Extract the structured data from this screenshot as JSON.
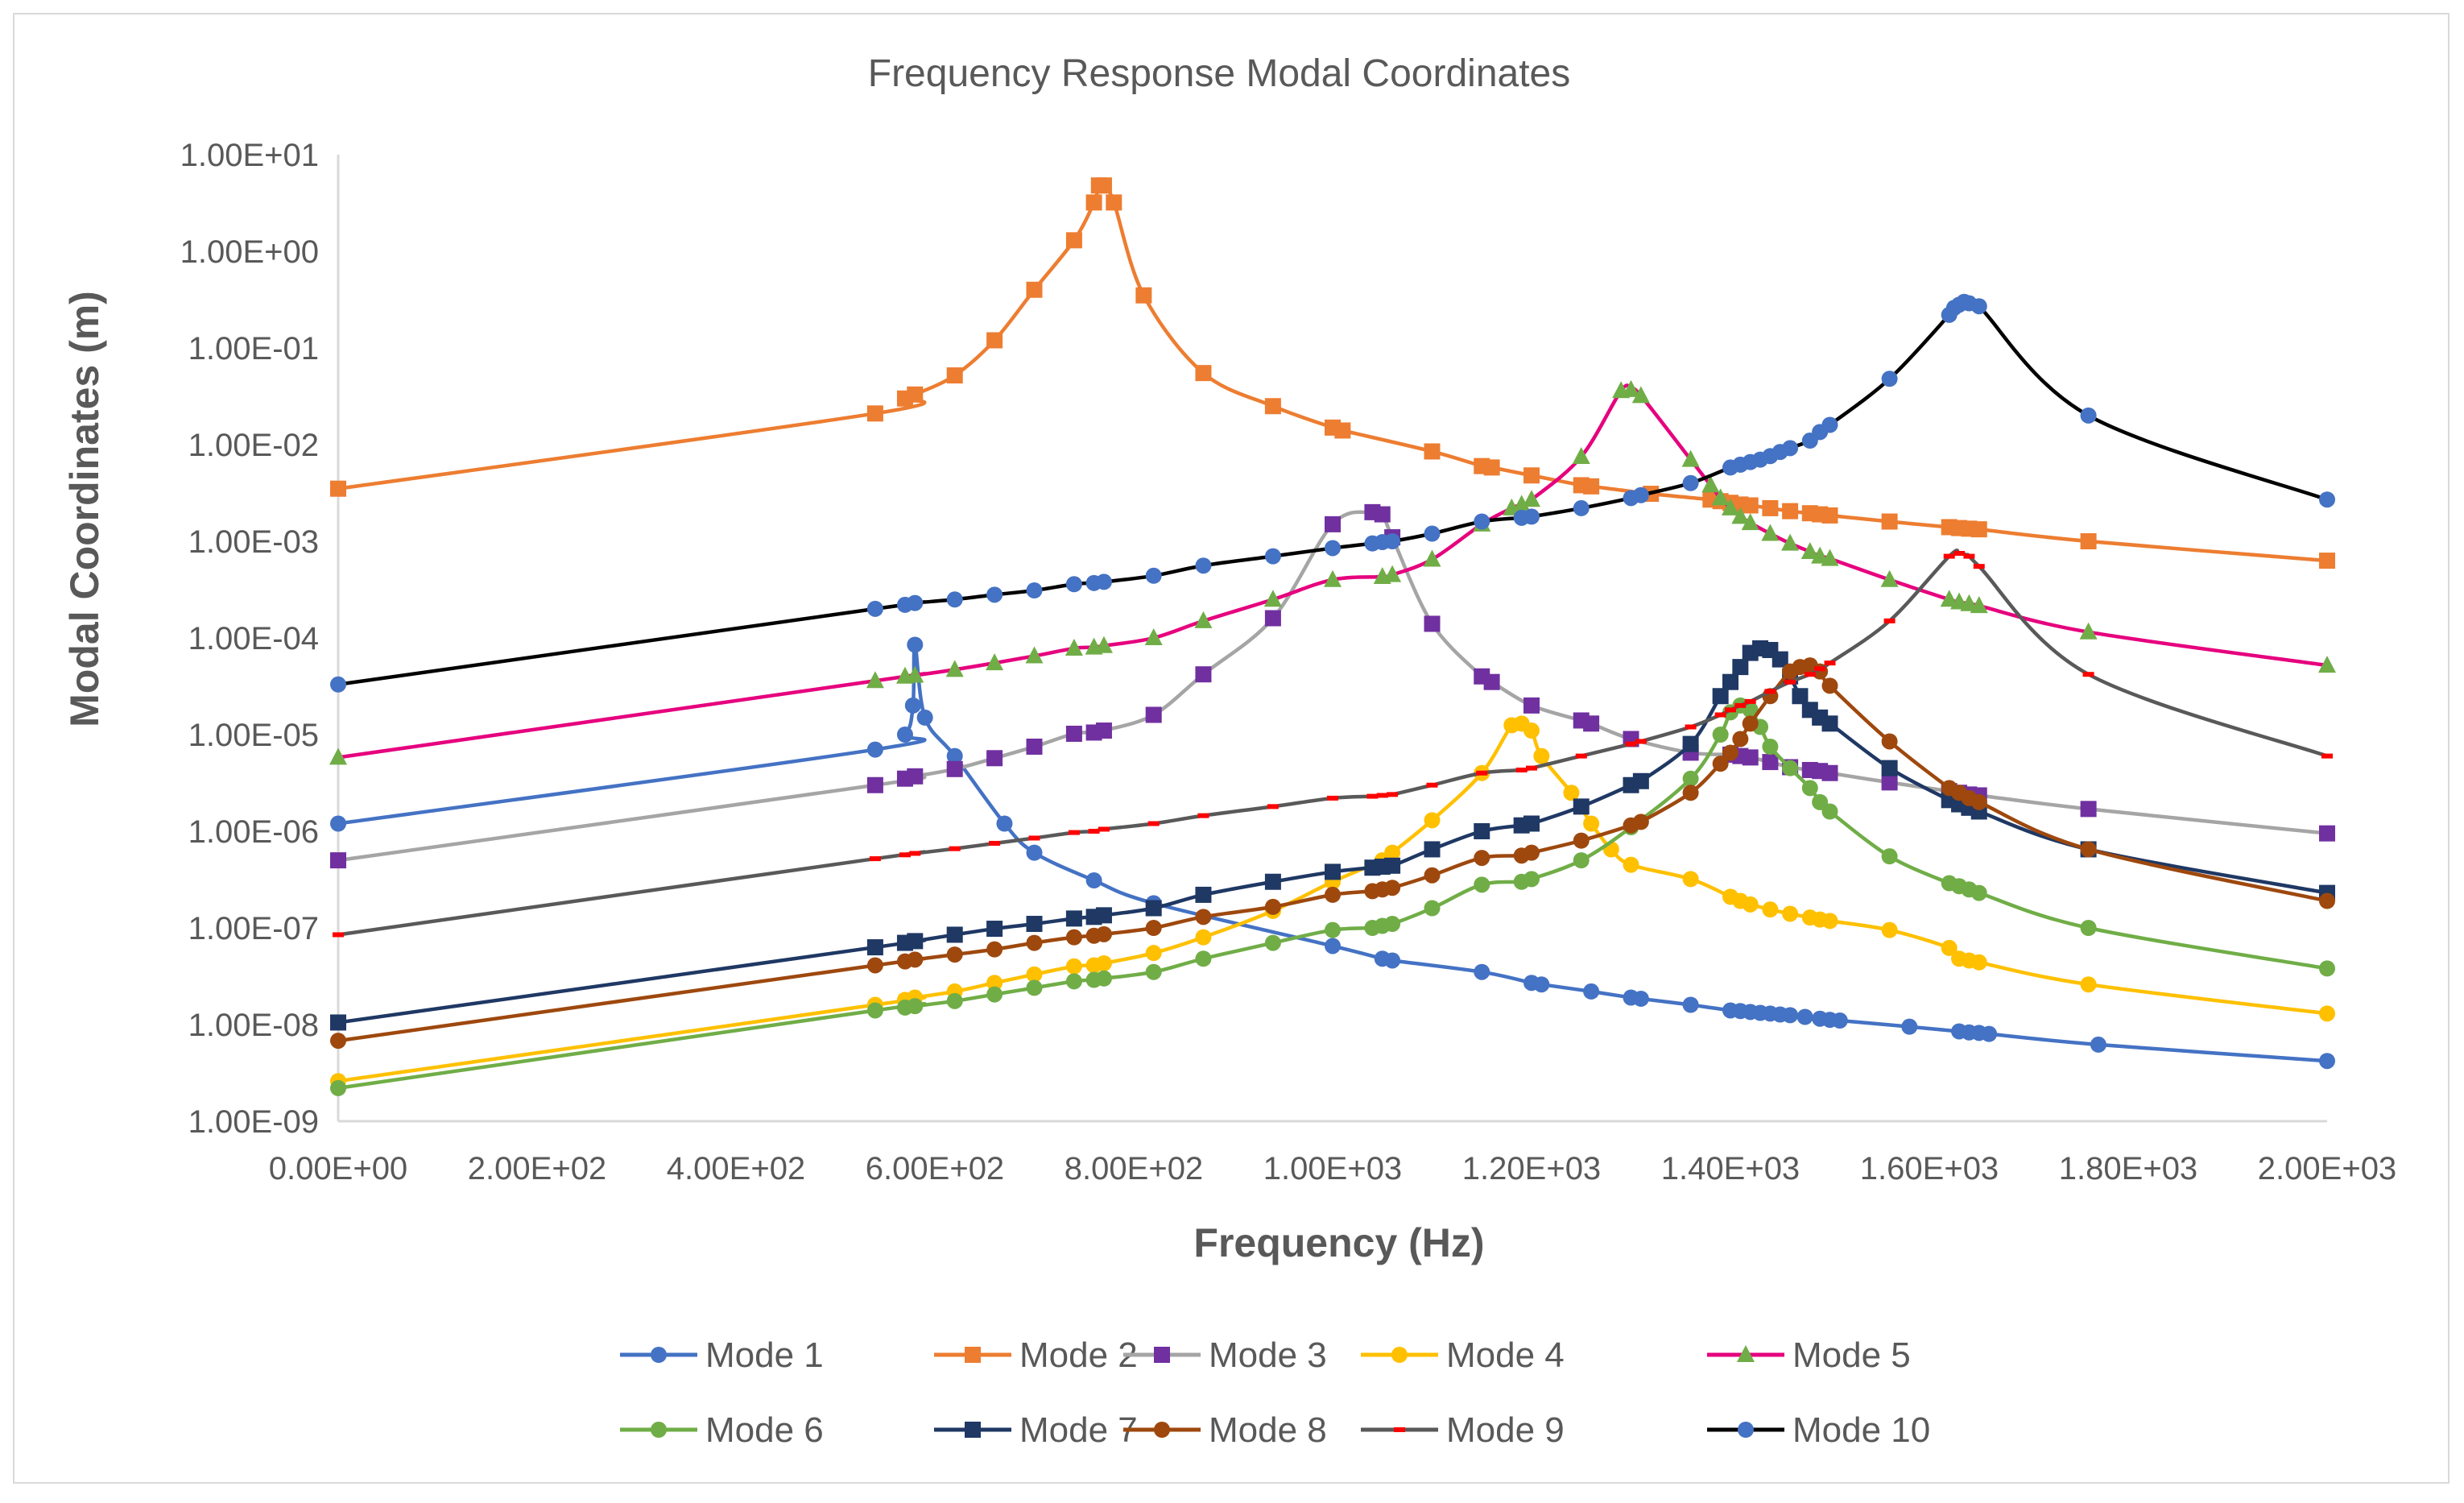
{
  "chart_data": {
    "type": "line",
    "title": "Frequency Response  Modal Coordinates",
    "xlabel": "Frequency (Hz)",
    "ylabel": "Modal Coordinates (m)",
    "xlim": [
      0,
      2000
    ],
    "ylim": [
      1e-09,
      10
    ],
    "yscale": "log",
    "grid": false,
    "legend_position": "bottom",
    "x_tick_labels": [
      "0.00E+00",
      "2.00E+02",
      "4.00E+02",
      "6.00E+02",
      "8.00E+02",
      "1.00E+03",
      "1.20E+03",
      "1.40E+03",
      "1.60E+03",
      "1.80E+03",
      "2.00E+03"
    ],
    "x_ticks": [
      0,
      200,
      400,
      600,
      800,
      1000,
      1200,
      1400,
      1600,
      1800,
      2000
    ],
    "y_tick_labels": [
      "1.00E-09",
      "1.00E-08",
      "1.00E-07",
      "1.00E-06",
      "1.00E-05",
      "1.00E-04",
      "1.00E-03",
      "1.00E-02",
      "1.00E-01",
      "1.00E+00",
      "1.00E+01"
    ],
    "y_ticks": [
      1e-09,
      1e-08,
      1e-07,
      1e-06,
      1e-05,
      0.0001,
      0.001,
      0.01,
      0.1,
      1,
      10
    ],
    "series": [
      {
        "name": "Mode 1",
        "color": "#4472C4",
        "marker": "circle",
        "x": [
          0,
          540,
          570,
          578,
          580,
          590,
          620,
          670,
          700,
          760,
          820,
          1000,
          1050,
          1060,
          1150,
          1200,
          1210,
          1260,
          1300,
          1310,
          1360,
          1400,
          1410,
          1420,
          1430,
          1440,
          1450,
          1460,
          1475,
          1490,
          1500,
          1510,
          1580,
          1630,
          1640,
          1650,
          1660,
          1770,
          2000
        ],
        "y": [
          1.2e-06,
          7e-06,
          1e-05,
          2e-05,
          8.5e-05,
          1.5e-05,
          6e-06,
          1.2e-06,
          6e-07,
          3.1e-07,
          1.8e-07,
          6.5e-08,
          4.8e-08,
          4.6e-08,
          3.5e-08,
          2.7e-08,
          2.6e-08,
          2.2e-08,
          1.9e-08,
          1.85e-08,
          1.6e-08,
          1.4e-08,
          1.38e-08,
          1.35e-08,
          1.32e-08,
          1.3e-08,
          1.27e-08,
          1.25e-08,
          1.2e-08,
          1.15e-08,
          1.12e-08,
          1.1e-08,
          9.5e-09,
          8.5e-09,
          8.3e-09,
          8.2e-09,
          8e-09,
          6.2e-09,
          4.2e-09
        ]
      },
      {
        "name": "Mode 2",
        "color": "#ED7D31",
        "marker": "square",
        "x": [
          0,
          540,
          570,
          580,
          620,
          660,
          700,
          740,
          760,
          765,
          770,
          780,
          810,
          870,
          940,
          1000,
          1010,
          1100,
          1150,
          1160,
          1200,
          1250,
          1260,
          1320,
          1380,
          1390,
          1400,
          1410,
          1420,
          1440,
          1460,
          1480,
          1490,
          1500,
          1560,
          1620,
          1630,
          1640,
          1650,
          1760,
          2000
        ],
        "y": [
          0.0035,
          0.021,
          0.03,
          0.033,
          0.052,
          0.12,
          0.4,
          1.3,
          3.2,
          4.8,
          4.8,
          3.2,
          0.35,
          0.055,
          0.025,
          0.015,
          0.014,
          0.0085,
          0.006,
          0.0058,
          0.0048,
          0.0038,
          0.0037,
          0.0031,
          0.0027,
          0.0026,
          0.0025,
          0.0024,
          0.00235,
          0.0022,
          0.00205,
          0.00195,
          0.0019,
          0.00185,
          0.0016,
          0.0014,
          0.00137,
          0.00135,
          0.00133,
          0.001,
          0.00063
        ]
      },
      {
        "name": "Mode 3",
        "color": "#A5A5A5",
        "marker": "square",
        "marker_color": "#7030A0",
        "x": [
          0,
          540,
          570,
          580,
          620,
          660,
          700,
          740,
          760,
          770,
          820,
          870,
          940,
          1000,
          1040,
          1050,
          1060,
          1100,
          1150,
          1160,
          1200,
          1250,
          1260,
          1300,
          1360,
          1400,
          1410,
          1420,
          1440,
          1460,
          1480,
          1490,
          1500,
          1560,
          1620,
          1630,
          1640,
          1650,
          1760,
          2000
        ],
        "y": [
          5e-07,
          3e-06,
          3.5e-06,
          3.7e-06,
          4.4e-06,
          5.7e-06,
          7.5e-06,
          1.02e-05,
          1.05e-05,
          1.1e-05,
          1.6e-05,
          4.2e-05,
          0.00016,
          0.0015,
          0.002,
          0.0019,
          0.0011,
          0.00014,
          4e-05,
          3.5e-05,
          2e-05,
          1.4e-05,
          1.3e-05,
          9e-06,
          6.5e-06,
          6.2e-06,
          6e-06,
          5.8e-06,
          5.2e-06,
          4.6e-06,
          4.3e-06,
          4.2e-06,
          4e-06,
          3.2e-06,
          2.6e-06,
          2.5e-06,
          2.4e-06,
          2.35e-06,
          1.7e-06,
          9.5e-07
        ]
      },
      {
        "name": "Mode 4",
        "color": "#FFC000",
        "marker": "circle",
        "x": [
          0,
          540,
          570,
          580,
          620,
          660,
          700,
          740,
          760,
          770,
          820,
          870,
          940,
          1000,
          1050,
          1060,
          1100,
          1150,
          1180,
          1190,
          1200,
          1210,
          1240,
          1260,
          1280,
          1300,
          1360,
          1400,
          1410,
          1420,
          1440,
          1460,
          1480,
          1490,
          1500,
          1560,
          1620,
          1630,
          1640,
          1650,
          1760,
          2000
        ],
        "y": [
          2.6e-09,
          1.6e-08,
          1.8e-08,
          1.9e-08,
          2.2e-08,
          2.7e-08,
          3.3e-08,
          4e-08,
          4.1e-08,
          4.3e-08,
          5.5e-08,
          8e-08,
          1.5e-07,
          3e-07,
          5e-07,
          6e-07,
          1.3e-06,
          4e-06,
          1.25e-05,
          1.3e-05,
          1.1e-05,
          6e-06,
          2.5e-06,
          1.2e-06,
          6.5e-07,
          4.5e-07,
          3.2e-07,
          2.1e-07,
          1.9e-07,
          1.75e-07,
          1.55e-07,
          1.4e-07,
          1.28e-07,
          1.22e-07,
          1.18e-07,
          9.5e-08,
          6.2e-08,
          4.8e-08,
          4.6e-08,
          4.4e-08,
          2.6e-08,
          1.3e-08
        ]
      },
      {
        "name": "Mode 5",
        "color": "#E6007E",
        "marker": "triangle",
        "marker_color": "#70AD47",
        "x": [
          0,
          540,
          570,
          580,
          620,
          660,
          700,
          740,
          760,
          770,
          820,
          870,
          940,
          1000,
          1050,
          1060,
          1100,
          1150,
          1180,
          1190,
          1200,
          1250,
          1290,
          1300,
          1310,
          1360,
          1380,
          1390,
          1400,
          1410,
          1420,
          1440,
          1460,
          1480,
          1490,
          1500,
          1560,
          1620,
          1630,
          1640,
          1650,
          1760,
          2000
        ],
        "y": [
          5.8e-06,
          3.6e-05,
          4e-05,
          4.1e-05,
          4.7e-05,
          5.5e-05,
          6.5e-05,
          7.8e-05,
          8e-05,
          8.3e-05,
          0.0001,
          0.00015,
          0.00025,
          0.0004,
          0.00043,
          0.00045,
          0.00065,
          0.0015,
          0.0022,
          0.0024,
          0.0027,
          0.0075,
          0.036,
          0.037,
          0.032,
          0.007,
          0.0038,
          0.0028,
          0.0022,
          0.0018,
          0.00155,
          0.0012,
          0.00095,
          0.00078,
          0.0007,
          0.00066,
          0.0004,
          0.00025,
          0.000235,
          0.000225,
          0.000215,
          0.000115,
          5.2e-05
        ]
      },
      {
        "name": "Mode 6",
        "color": "#70AD47",
        "marker": "circle",
        "x": [
          0,
          540,
          570,
          580,
          620,
          660,
          700,
          740,
          760,
          770,
          820,
          870,
          940,
          1000,
          1040,
          1050,
          1060,
          1100,
          1150,
          1190,
          1200,
          1250,
          1300,
          1360,
          1390,
          1400,
          1410,
          1420,
          1430,
          1440,
          1460,
          1480,
          1490,
          1500,
          1560,
          1620,
          1630,
          1640,
          1650,
          1760,
          2000
        ],
        "y": [
          2.2e-09,
          1.4e-08,
          1.5e-08,
          1.55e-08,
          1.75e-08,
          2.05e-08,
          2.4e-08,
          2.8e-08,
          2.9e-08,
          3e-08,
          3.5e-08,
          4.8e-08,
          7e-08,
          9.5e-08,
          1e-07,
          1.05e-07,
          1.1e-07,
          1.6e-07,
          2.8e-07,
          3e-07,
          3.2e-07,
          5e-07,
          1.1e-06,
          3.5e-06,
          1e-05,
          1.7e-05,
          2e-05,
          1.8e-05,
          1.2e-05,
          7.5e-06,
          4.5e-06,
          2.8e-06,
          2e-06,
          1.6e-06,
          5.5e-07,
          2.9e-07,
          2.7e-07,
          2.5e-07,
          2.3e-07,
          1e-07,
          3.8e-08
        ]
      },
      {
        "name": "Mode 7",
        "color": "#1F3864",
        "marker": "square",
        "x": [
          0,
          540,
          570,
          580,
          620,
          660,
          700,
          740,
          760,
          770,
          820,
          870,
          940,
          1000,
          1040,
          1050,
          1060,
          1100,
          1150,
          1190,
          1200,
          1250,
          1300,
          1310,
          1360,
          1390,
          1400,
          1410,
          1420,
          1430,
          1440,
          1450,
          1460,
          1470,
          1480,
          1490,
          1500,
          1560,
          1620,
          1630,
          1640,
          1650,
          1760,
          2000
        ],
        "y": [
          1.05e-08,
          6.3e-08,
          7e-08,
          7.3e-08,
          8.5e-08,
          9.8e-08,
          1.1e-07,
          1.25e-07,
          1.3e-07,
          1.35e-07,
          1.6e-07,
          2.2e-07,
          3e-07,
          3.8e-07,
          4.2e-07,
          4.3e-07,
          4.4e-07,
          6.5e-07,
          1e-06,
          1.15e-06,
          1.2e-06,
          1.8e-06,
          3e-06,
          3.3e-06,
          8e-06,
          2.5e-05,
          3.5e-05,
          5e-05,
          7e-05,
          7.8e-05,
          7.5e-05,
          6e-05,
          4e-05,
          2.5e-05,
          1.8e-05,
          1.5e-05,
          1.3e-05,
          4.5e-06,
          2.1e-06,
          1.9e-06,
          1.75e-06,
          1.6e-06,
          6.5e-07,
          2.3e-07
        ]
      },
      {
        "name": "Mode 8",
        "color": "#9E480E",
        "marker": "circle",
        "x": [
          0,
          540,
          570,
          580,
          620,
          660,
          700,
          740,
          760,
          770,
          820,
          870,
          940,
          1000,
          1040,
          1050,
          1060,
          1100,
          1150,
          1190,
          1200,
          1250,
          1300,
          1310,
          1360,
          1390,
          1400,
          1410,
          1420,
          1440,
          1460,
          1470,
          1480,
          1490,
          1500,
          1560,
          1620,
          1630,
          1640,
          1650,
          1760,
          2000
        ],
        "y": [
          6.8e-09,
          4.1e-08,
          4.5e-08,
          4.7e-08,
          5.3e-08,
          6e-08,
          7e-08,
          8e-08,
          8.3e-08,
          8.6e-08,
          1e-07,
          1.3e-07,
          1.65e-07,
          2.2e-07,
          2.4e-07,
          2.5e-07,
          2.6e-07,
          3.5e-07,
          5.3e-07,
          5.6e-07,
          6e-07,
          8e-07,
          1.15e-06,
          1.25e-06,
          2.5e-06,
          5e-06,
          6.5e-06,
          9e-06,
          1.3e-05,
          2.5e-05,
          4.5e-05,
          5e-05,
          5.2e-05,
          4.5e-05,
          3.2e-05,
          8.5e-06,
          2.8e-06,
          2.5e-06,
          2.2e-06,
          2e-06,
          6.5e-07,
          1.9e-07
        ]
      },
      {
        "name": "Mode 9",
        "color": "#595959",
        "marker": "dash",
        "marker_color": "#FF0000",
        "x": [
          0,
          540,
          570,
          580,
          620,
          660,
          700,
          740,
          760,
          770,
          820,
          870,
          940,
          1000,
          1040,
          1050,
          1060,
          1100,
          1150,
          1190,
          1200,
          1250,
          1300,
          1310,
          1360,
          1390,
          1400,
          1410,
          1420,
          1440,
          1460,
          1480,
          1490,
          1500,
          1560,
          1620,
          1630,
          1640,
          1650,
          1760,
          2000
        ],
        "y": [
          8.5e-08,
          5.2e-07,
          5.7e-07,
          5.9e-07,
          6.6e-07,
          7.5e-07,
          8.5e-07,
          9.7e-07,
          1e-06,
          1.05e-06,
          1.2e-06,
          1.45e-06,
          1.8e-06,
          2.2e-06,
          2.3e-06,
          2.35e-06,
          2.4e-06,
          3e-06,
          4e-06,
          4.3e-06,
          4.5e-06,
          6e-06,
          8e-06,
          8.5e-06,
          1.2e-05,
          1.6e-05,
          1.8e-05,
          2e-05,
          2.2e-05,
          2.8e-05,
          3.5e-05,
          4.2e-05,
          4.8e-05,
          5.5e-05,
          0.00015,
          0.0007,
          0.00075,
          0.0007,
          0.00055,
          4.2e-05,
          6e-06
        ]
      },
      {
        "name": "Mode 10",
        "color": "#000000",
        "marker": "circle",
        "marker_color": "#4472C4",
        "x": [
          0,
          540,
          570,
          580,
          620,
          660,
          700,
          740,
          760,
          770,
          820,
          870,
          940,
          1000,
          1040,
          1050,
          1060,
          1100,
          1150,
          1190,
          1200,
          1250,
          1300,
          1310,
          1360,
          1400,
          1410,
          1420,
          1430,
          1440,
          1450,
          1460,
          1480,
          1490,
          1500,
          1560,
          1620,
          1625,
          1630,
          1635,
          1640,
          1650,
          1760,
          2000
        ],
        "y": [
          3.3e-05,
          0.0002,
          0.00022,
          0.00023,
          0.00025,
          0.00028,
          0.00031,
          0.00036,
          0.00037,
          0.00038,
          0.00044,
          0.00056,
          0.0007,
          0.00085,
          0.00095,
          0.00098,
          0.001,
          0.0012,
          0.0016,
          0.00175,
          0.0018,
          0.0022,
          0.0028,
          0.003,
          0.004,
          0.0058,
          0.0062,
          0.0066,
          0.007,
          0.0076,
          0.0084,
          0.0092,
          0.011,
          0.0135,
          0.016,
          0.048,
          0.22,
          0.26,
          0.28,
          0.3,
          0.29,
          0.27,
          0.02,
          0.0027
        ]
      }
    ]
  }
}
